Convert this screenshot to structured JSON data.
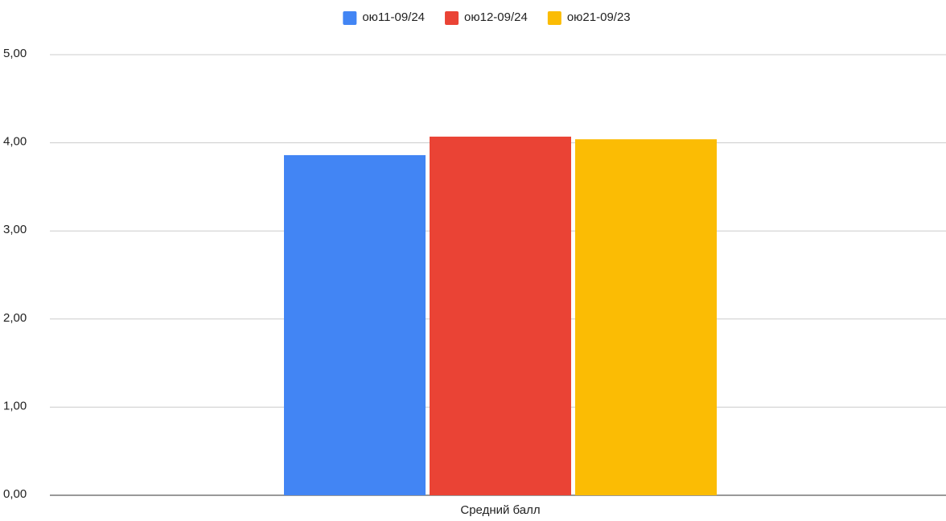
{
  "chart_data": {
    "type": "bar",
    "categories": [
      "Средний балл"
    ],
    "series": [
      {
        "name": "ою11-09/24",
        "color": "#4285f4",
        "values": [
          3.86
        ]
      },
      {
        "name": "ою12-09/24",
        "color": "#ea4335",
        "values": [
          4.07
        ]
      },
      {
        "name": "ою21-09/23",
        "color": "#fbbc04",
        "values": [
          4.04
        ]
      }
    ],
    "ylim": [
      0,
      5
    ],
    "yticks": [
      {
        "value": 0,
        "label": "0,00"
      },
      {
        "value": 1,
        "label": "1,00"
      },
      {
        "value": 2,
        "label": "2,00"
      },
      {
        "value": 3,
        "label": "3,00"
      },
      {
        "value": 4,
        "label": "4,00"
      },
      {
        "value": 5,
        "label": "5,00"
      }
    ],
    "grid": true,
    "legend": "top"
  }
}
